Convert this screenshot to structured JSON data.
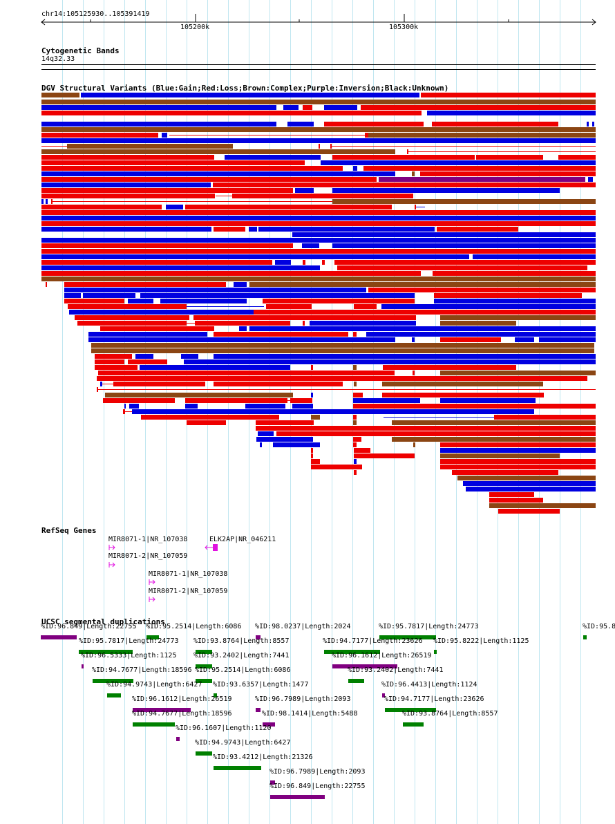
{
  "region": "chr14:105125930..105391419",
  "ruler": {
    "ticks": [
      "105200k",
      "105300k"
    ]
  },
  "cytobands": {
    "title": "Cytogenetic Bands",
    "band": "14q32.33"
  },
  "dgv": {
    "title": "DGV Structural Variants (Blue:Gain;Red:Loss;Brown:Complex;Purple:Inversion;Black:Unknown)",
    "colors": {
      "gain": "#0000e0",
      "loss": "#ee0000",
      "complex": "#8b4513",
      "inversion": "#800080"
    }
  },
  "refseq": {
    "title": "RefSeq Genes",
    "genes": [
      {
        "label": "MIR8071-1|NR_107038",
        "strand": "+"
      },
      {
        "label": "ELK2AP|NR_046211",
        "strand": "-"
      },
      {
        "label": "MIR8071-2|NR_107059",
        "strand": "+"
      },
      {
        "label": "MIR8071-1|NR_107038",
        "strand": "+"
      },
      {
        "label": "MIR8071-2|NR_107059",
        "strand": "+"
      }
    ],
    "color": "#e010e0"
  },
  "segdups": {
    "title": "UCSC segmental duplications",
    "colors": {
      "green": "#008000",
      "purple": "#800080"
    },
    "items": [
      {
        "label": "%ID:96.849|Length:22755",
        "color": "purple"
      },
      {
        "label": "%ID:95.2514|Length:6086",
        "color": "green"
      },
      {
        "label": "%ID:98.0237|Length:2024",
        "color": "purple"
      },
      {
        "label": "%ID:95.7817|Length:24773",
        "color": "green"
      },
      {
        "label": "%ID:95.8",
        "color": "green"
      },
      {
        "label": "%ID:95.7817|Length:24773",
        "color": "green"
      },
      {
        "label": "%ID:93.8764|Length:8557",
        "color": "green"
      },
      {
        "label": "%ID:94.7177|Length:23626",
        "color": "green"
      },
      {
        "label": "%ID:95.8222|Length:1125",
        "color": "green"
      },
      {
        "label": "%ID:96.5333|Length:1125",
        "color": "purple"
      },
      {
        "label": "%ID:93.2402|Length:7441",
        "color": "green"
      },
      {
        "label": "%ID:96.1612|Length:26519",
        "color": "purple"
      },
      {
        "label": "%ID:94.7677|Length:18596",
        "color": "green"
      },
      {
        "label": "%ID:95.2514|Length:6086",
        "color": "green"
      },
      {
        "label": "%ID:93.2402|Length:7441",
        "color": "green"
      },
      {
        "label": "%ID:94.9743|Length:6427",
        "color": "green"
      },
      {
        "label": "%ID:93.6357|Length:1477",
        "color": "green"
      },
      {
        "label": "%ID:96.4413|Length:1124",
        "color": "purple"
      },
      {
        "label": "%ID:96.1612|Length:26519",
        "color": "purple"
      },
      {
        "label": "%ID:96.7989|Length:2093",
        "color": "purple"
      },
      {
        "label": "%ID:94.7177|Length:23626",
        "color": "green"
      },
      {
        "label": "%ID:94.7677|Length:18596",
        "color": "green"
      },
      {
        "label": "%ID:98.1414|Length:5488",
        "color": "purple"
      },
      {
        "label": "%ID:93.8764|Length:8557",
        "color": "green"
      },
      {
        "label": "%ID:96.1607|Length:1120",
        "color": "purple"
      },
      {
        "label": "%ID:94.9743|Length:6427",
        "color": "green"
      },
      {
        "label": "%ID:93.4212|Length:21326",
        "color": "green"
      },
      {
        "label": "%ID:96.7989|Length:2093",
        "color": "purple"
      },
      {
        "label": "%ID:96.849|Length:22755",
        "color": "purple"
      }
    ]
  }
}
